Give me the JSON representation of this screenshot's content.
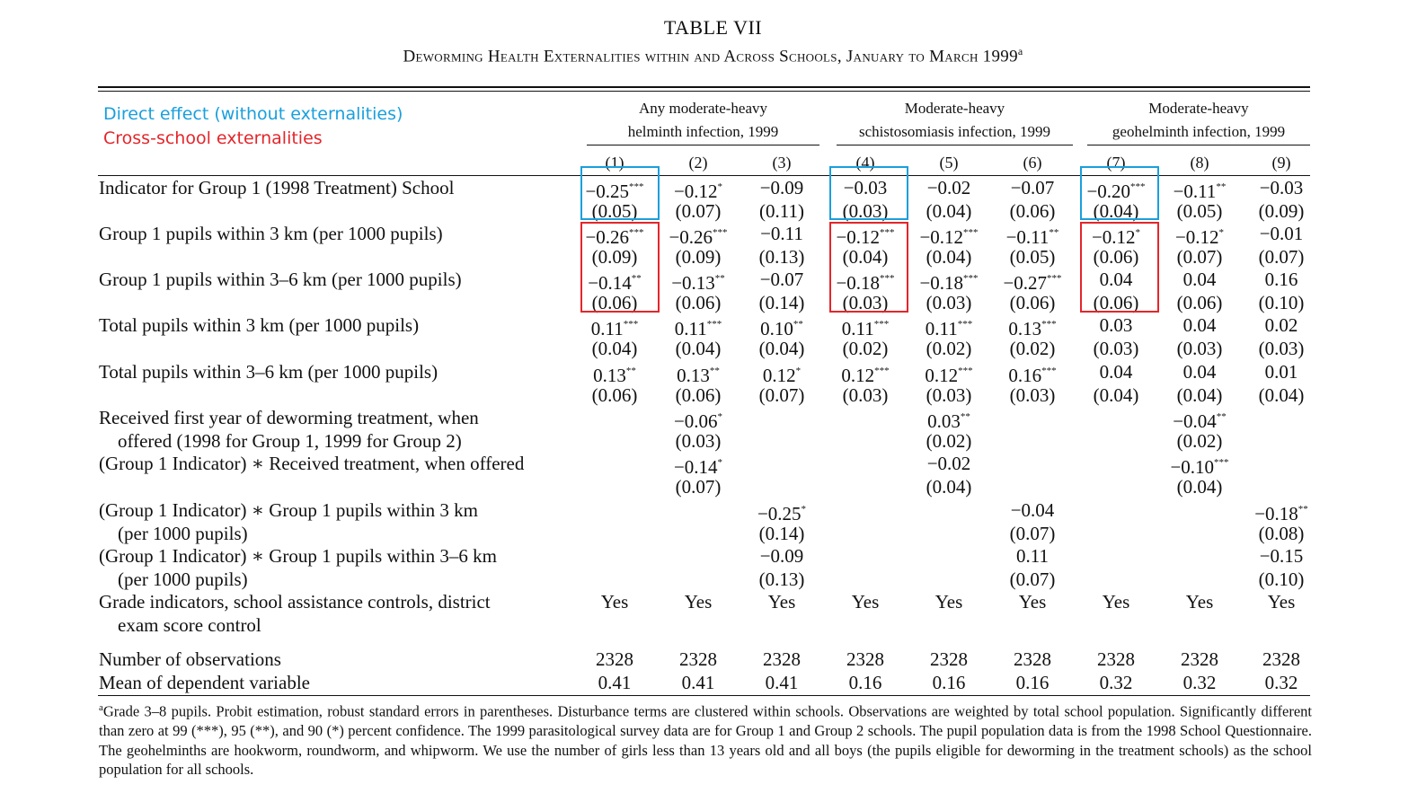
{
  "title": "TABLE VII",
  "subtitle": "Deworming Health Externalities within and Across Schools, January to March 1999",
  "subtitle_note_mark": "a",
  "annotations": {
    "direct_label": "Direct effect (without externalities)",
    "direct_color": "#1a9fdc",
    "cross_label": "Cross-school externalities",
    "cross_color": "#e3262b"
  },
  "groups": [
    {
      "line1": "Any moderate-heavy",
      "line2": "helminth infection, 1999"
    },
    {
      "line1": "Moderate-heavy",
      "line2": "schistosomiasis infection, 1999"
    },
    {
      "line1": "Moderate-heavy",
      "line2": "geohelminth infection, 1999"
    }
  ],
  "columns": [
    "(1)",
    "(2)",
    "(3)",
    "(4)",
    "(5)",
    "(6)",
    "(7)",
    "(8)",
    "(9)"
  ],
  "rows": [
    {
      "label": [
        "Indicator for Group 1 (1998 Treatment) School"
      ],
      "coef": [
        "−0.25",
        "−0.12",
        "−0.09",
        "−0.03",
        "−0.02",
        "−0.07",
        "−0.20",
        "−0.11",
        "−0.03"
      ],
      "stars": [
        "***",
        "*",
        "",
        "",
        "",
        "",
        "***",
        "**",
        ""
      ],
      "se": [
        "(0.05)",
        "(0.07)",
        "(0.11)",
        "(0.03)",
        "(0.04)",
        "(0.06)",
        "(0.04)",
        "(0.05)",
        "(0.09)"
      ]
    },
    {
      "label": [
        "Group 1 pupils within 3 km (per 1000 pupils)"
      ],
      "coef": [
        "−0.26",
        "−0.26",
        "−0.11",
        "−0.12",
        "−0.12",
        "−0.11",
        "−0.12",
        "−0.12",
        "−0.01"
      ],
      "stars": [
        "***",
        "***",
        "",
        "***",
        "***",
        "**",
        "*",
        "*",
        ""
      ],
      "se": [
        "(0.09)",
        "(0.09)",
        "(0.13)",
        "(0.04)",
        "(0.04)",
        "(0.05)",
        "(0.06)",
        "(0.07)",
        "(0.07)"
      ]
    },
    {
      "label": [
        "Group 1 pupils within 3–6 km (per 1000 pupils)"
      ],
      "coef": [
        "−0.14",
        "−0.13",
        "−0.07",
        "−0.18",
        "−0.18",
        "−0.27",
        "0.04",
        "0.04",
        "0.16"
      ],
      "stars": [
        "**",
        "**",
        "",
        "***",
        "***",
        "***",
        "",
        "",
        ""
      ],
      "se": [
        "(0.06)",
        "(0.06)",
        "(0.14)",
        "(0.03)",
        "(0.03)",
        "(0.06)",
        "(0.06)",
        "(0.06)",
        "(0.10)"
      ]
    },
    {
      "label": [
        "Total pupils within 3 km (per 1000 pupils)"
      ],
      "coef": [
        "0.11",
        "0.11",
        "0.10",
        "0.11",
        "0.11",
        "0.13",
        "0.03",
        "0.04",
        "0.02"
      ],
      "stars": [
        "***",
        "***",
        "**",
        "***",
        "***",
        "***",
        "",
        "",
        ""
      ],
      "se": [
        "(0.04)",
        "(0.04)",
        "(0.04)",
        "(0.02)",
        "(0.02)",
        "(0.02)",
        "(0.03)",
        "(0.03)",
        "(0.03)"
      ]
    },
    {
      "label": [
        "Total pupils within 3–6 km (per 1000 pupils)"
      ],
      "coef": [
        "0.13",
        "0.13",
        "0.12",
        "0.12",
        "0.12",
        "0.16",
        "0.04",
        "0.04",
        "0.01"
      ],
      "stars": [
        "**",
        "**",
        "*",
        "***",
        "***",
        "***",
        "",
        "",
        ""
      ],
      "se": [
        "(0.06)",
        "(0.06)",
        "(0.07)",
        "(0.03)",
        "(0.03)",
        "(0.03)",
        "(0.04)",
        "(0.04)",
        "(0.04)"
      ]
    },
    {
      "label": [
        "Received first year of deworming treatment, when",
        "offered (1998 for Group 1, 1999 for Group 2)"
      ],
      "coef": [
        "",
        "−0.06",
        "",
        "",
        "0.03",
        "",
        "",
        "−0.04",
        ""
      ],
      "stars": [
        "",
        "*",
        "",
        "",
        "**",
        "",
        "",
        "**",
        ""
      ],
      "se": [
        "",
        "(0.03)",
        "",
        "",
        "(0.02)",
        "",
        "",
        "(0.02)",
        ""
      ]
    },
    {
      "label": [
        "(Group 1 Indicator) ∗ Received treatment, when offered"
      ],
      "coef": [
        "",
        "−0.14",
        "",
        "",
        "−0.02",
        "",
        "",
        "−0.10",
        ""
      ],
      "stars": [
        "",
        "*",
        "",
        "",
        "",
        "",
        "",
        "***",
        ""
      ],
      "se": [
        "",
        "(0.07)",
        "",
        "",
        "(0.04)",
        "",
        "",
        "(0.04)",
        ""
      ]
    },
    {
      "label": [
        "(Group 1 Indicator) ∗ Group 1 pupils within 3 km",
        "(per 1000 pupils)"
      ],
      "coef": [
        "",
        "",
        "−0.25",
        "",
        "",
        "−0.04",
        "",
        "",
        "−0.18"
      ],
      "stars": [
        "",
        "",
        "*",
        "",
        "",
        "",
        "",
        "",
        "**"
      ],
      "se": [
        "",
        "",
        "(0.14)",
        "",
        "",
        "(0.07)",
        "",
        "",
        "(0.08)"
      ]
    },
    {
      "label": [
        "(Group 1 Indicator) ∗ Group 1 pupils within 3–6 km",
        "(per 1000 pupils)"
      ],
      "coef": [
        "",
        "",
        "−0.09",
        "",
        "",
        "0.11",
        "",
        "",
        "−0.15"
      ],
      "stars": [
        "",
        "",
        "",
        "",
        "",
        "",
        "",
        "",
        ""
      ],
      "se": [
        "",
        "",
        "(0.13)",
        "",
        "",
        "(0.07)",
        "",
        "",
        "(0.10)"
      ]
    },
    {
      "label": [
        "Grade indicators, school assistance controls, district",
        "exam score control"
      ],
      "coef": [
        "Yes",
        "Yes",
        "Yes",
        "Yes",
        "Yes",
        "Yes",
        "Yes",
        "Yes",
        "Yes"
      ],
      "stars": [
        "",
        "",
        "",
        "",
        "",
        "",
        "",
        "",
        ""
      ],
      "se": [
        "",
        "",
        "",
        "",
        "",
        "",
        "",
        "",
        ""
      ]
    },
    {
      "label": [
        "Number of observations"
      ],
      "coef": [
        "2328",
        "2328",
        "2328",
        "2328",
        "2328",
        "2328",
        "2328",
        "2328",
        "2328"
      ],
      "stars": [
        "",
        "",
        "",
        "",
        "",
        "",
        "",
        "",
        ""
      ],
      "se": [
        "",
        "",
        "",
        "",
        "",
        "",
        "",
        "",
        ""
      ]
    },
    {
      "label": [
        "Mean of dependent variable"
      ],
      "coef": [
        "0.41",
        "0.41",
        "0.41",
        "0.16",
        "0.16",
        "0.16",
        "0.32",
        "0.32",
        "0.32"
      ],
      "stars": [
        "",
        "",
        "",
        "",
        "",
        "",
        "",
        "",
        ""
      ],
      "se": [
        "",
        "",
        "",
        "",
        "",
        "",
        "",
        "",
        ""
      ]
    }
  ],
  "footnote": {
    "mark": "a",
    "text": "Grade 3–8 pupils. Probit estimation, robust standard errors in parentheses. Disturbance terms are clustered within schools. Observations are weighted by total school population. Significantly different than zero at 99 (***), 95 (**), and 90 (*) percent confidence. The 1999 parasitological survey data are for Group 1 and Group 2 schools. The pupil population data is from the 1998 School Questionnaire. The geohelminths are hookworm, roundworm, and whipworm. We use the number of girls less than 13 years old and all boys (the pupils eligible for deworming in the treatment schools) as the school population for all schools."
  }
}
